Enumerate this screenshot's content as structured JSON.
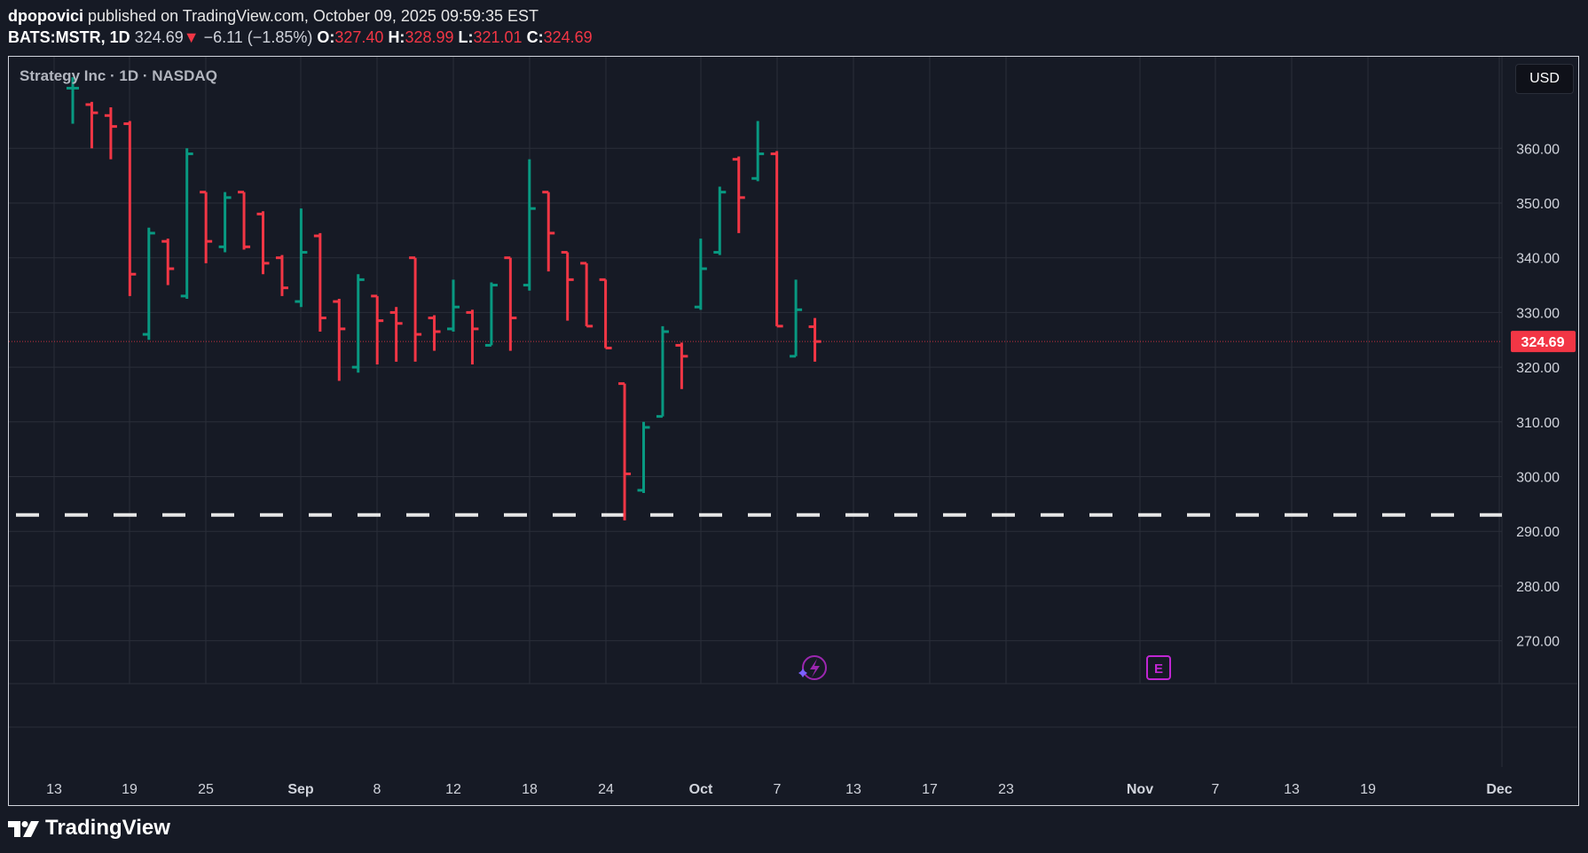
{
  "header": {
    "author": "dpopovici",
    "published": "published on TradingView.com, October 09, 2025 09:59:35 EST",
    "symbol": "BATS:MSTR, 1D",
    "last": "324.69",
    "change": "−6.11 (−1.85%)",
    "o_label": "O:",
    "o_value": "327.40",
    "h_label": "H:",
    "h_value": "328.99",
    "l_label": "L:",
    "l_value": "321.01",
    "c_label": "C:",
    "c_value": "324.69"
  },
  "chart_title": "Strategy Inc · 1D · NASDAQ",
  "currency_button": "USD",
  "brand": "TradingView",
  "colors": {
    "up": "#089981",
    "down": "#f23645",
    "grid": "#2a2e39",
    "background": "#161a25",
    "level_line": "#e6e6e6",
    "events": "#9c27b0"
  },
  "chart_data": {
    "type": "ohlc-bar",
    "title": "Strategy Inc · 1D · NASDAQ",
    "ylim": [
      261,
      371
    ],
    "y_ticks": [
      270,
      280,
      290,
      300,
      310,
      320,
      330,
      340,
      350,
      360
    ],
    "x_tick_labels": [
      "13",
      "19",
      "25",
      "Sep",
      "8",
      "12",
      "18",
      "24",
      "Oct",
      "7",
      "13",
      "17",
      "23",
      "Nov",
      "7",
      "13",
      "19",
      "Dec"
    ],
    "last_price": 324.69,
    "last_price_label": "324.69",
    "horizontal_level": 293.0,
    "bars": [
      {
        "o": 371.0,
        "h": 373.0,
        "l": 364.5,
        "c": 371.0
      },
      {
        "o": 368.0,
        "h": 368.5,
        "l": 360.0,
        "c": 366.5
      },
      {
        "o": 366.0,
        "h": 367.5,
        "l": 358.0,
        "c": 364.0
      },
      {
        "o": 364.5,
        "h": 365.0,
        "l": 333.0,
        "c": 337.0
      },
      {
        "o": 326.0,
        "h": 345.5,
        "l": 325.0,
        "c": 344.5
      },
      {
        "o": 343.0,
        "h": 343.5,
        "l": 335.0,
        "c": 338.0
      },
      {
        "o": 333.0,
        "h": 360.0,
        "l": 332.5,
        "c": 359.0
      },
      {
        "o": 352.0,
        "h": 352.0,
        "l": 339.0,
        "c": 343.0
      },
      {
        "o": 342.0,
        "h": 352.0,
        "l": 341.0,
        "c": 351.0
      },
      {
        "o": 352.0,
        "h": 352.0,
        "l": 341.5,
        "c": 342.0
      },
      {
        "o": 348.0,
        "h": 348.5,
        "l": 337.0,
        "c": 339.0
      },
      {
        "o": 340.0,
        "h": 340.5,
        "l": 333.0,
        "c": 334.5
      },
      {
        "o": 332.0,
        "h": 349.0,
        "l": 331.0,
        "c": 341.0
      },
      {
        "o": 344.0,
        "h": 344.5,
        "l": 326.5,
        "c": 329.0
      },
      {
        "o": 332.0,
        "h": 332.5,
        "l": 317.5,
        "c": 327.0
      },
      {
        "o": 320.0,
        "h": 337.0,
        "l": 319.0,
        "c": 336.0
      },
      {
        "o": 333.0,
        "h": 333.0,
        "l": 320.5,
        "c": 328.5
      },
      {
        "o": 330.0,
        "h": 331.0,
        "l": 321.0,
        "c": 328.0
      },
      {
        "o": 340.0,
        "h": 340.0,
        "l": 321.0,
        "c": 326.0
      },
      {
        "o": 329.0,
        "h": 329.5,
        "l": 323.0,
        "c": 326.5
      },
      {
        "o": 327.0,
        "h": 336.0,
        "l": 326.5,
        "c": 331.0
      },
      {
        "o": 330.0,
        "h": 330.5,
        "l": 320.5,
        "c": 327.0
      },
      {
        "o": 324.0,
        "h": 335.5,
        "l": 324.0,
        "c": 335.0
      },
      {
        "o": 340.0,
        "h": 340.0,
        "l": 323.0,
        "c": 329.0
      },
      {
        "o": 335.0,
        "h": 358.0,
        "l": 334.0,
        "c": 349.0
      },
      {
        "o": 352.0,
        "h": 352.0,
        "l": 337.5,
        "c": 344.5
      },
      {
        "o": 341.0,
        "h": 341.0,
        "l": 328.5,
        "c": 336.0
      },
      {
        "o": 339.0,
        "h": 339.0,
        "l": 327.5,
        "c": 327.5
      },
      {
        "o": 336.0,
        "h": 336.0,
        "l": 323.5,
        "c": 323.5
      },
      {
        "o": 317.0,
        "h": 317.0,
        "l": 292.0,
        "c": 300.5
      },
      {
        "o": 297.5,
        "h": 310.0,
        "l": 297.0,
        "c": 309.0
      },
      {
        "o": 311.0,
        "h": 327.5,
        "l": 311.0,
        "c": 326.5
      },
      {
        "o": 324.0,
        "h": 324.5,
        "l": 316.0,
        "c": 322.0
      },
      {
        "o": 331.0,
        "h": 343.5,
        "l": 330.5,
        "c": 338.0
      },
      {
        "o": 341.0,
        "h": 353.0,
        "l": 340.5,
        "c": 352.0
      },
      {
        "o": 358.0,
        "h": 358.5,
        "l": 344.5,
        "c": 351.0
      },
      {
        "o": 354.5,
        "h": 365.0,
        "l": 354.0,
        "c": 359.0
      },
      {
        "o": 359.0,
        "h": 359.5,
        "l": 327.5,
        "c": 327.5
      },
      {
        "o": 322.0,
        "h": 336.0,
        "l": 322.0,
        "c": 330.5
      },
      {
        "o": 327.4,
        "h": 328.99,
        "l": 321.01,
        "c": 324.69
      }
    ]
  }
}
